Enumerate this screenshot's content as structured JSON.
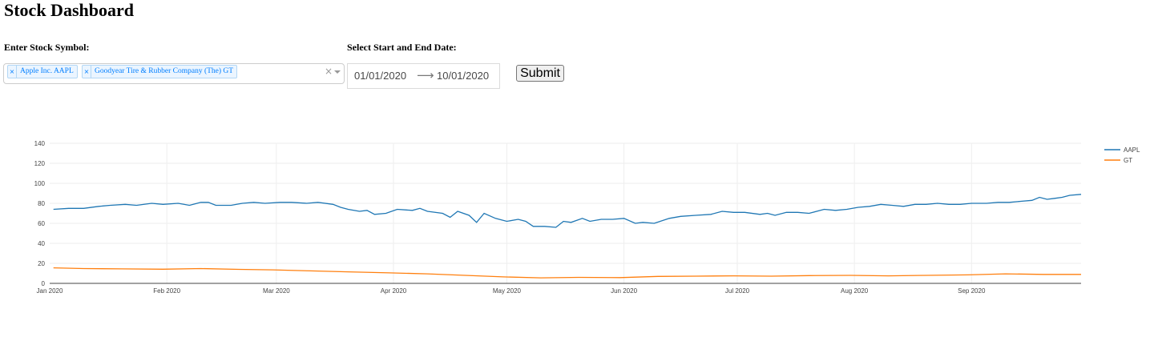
{
  "page": {
    "title": "Stock Dashboard"
  },
  "form": {
    "symbol_label": "Enter Stock Symbol:",
    "date_label": "Select Start and End Date:",
    "selected_symbols": [
      {
        "label": "Apple Inc. AAPL",
        "remove_icon": "×"
      },
      {
        "label": "Goodyear Tire & Rubber Company (The) GT",
        "remove_icon": "×"
      }
    ],
    "clear_icon": "×",
    "start_date": "01/01/2020",
    "end_date": "10/01/2020",
    "arrow_icon": "⟶",
    "submit_label": "Submit"
  },
  "colors": {
    "aapl": "#1f77b4",
    "gt": "#ff7f0e",
    "tag_blue": "#007eff"
  },
  "chart_data": {
    "type": "line",
    "title": "",
    "xlabel": "",
    "ylabel": "",
    "x_ticks": [
      "Jan 2020",
      "Feb 2020",
      "Mar 2020",
      "Apr 2020",
      "May 2020",
      "Jun 2020",
      "Jul 2020",
      "Aug 2020",
      "Sep 2020"
    ],
    "y_ticks": [
      0,
      20,
      40,
      60,
      80,
      100,
      120,
      140
    ],
    "ylim": [
      0,
      140
    ],
    "xlim": [
      "2020-01-01",
      "2020-09-30"
    ],
    "grid": true,
    "legend_position": "top-right",
    "series": [
      {
        "name": "AAPL",
        "color": "#1f77b4",
        "points": [
          [
            "2020-01-02",
            74
          ],
          [
            "2020-01-06",
            75
          ],
          [
            "2020-01-08",
            75
          ],
          [
            "2020-01-10",
            75
          ],
          [
            "2020-01-14",
            77
          ],
          [
            "2020-01-17",
            78
          ],
          [
            "2020-01-21",
            79
          ],
          [
            "2020-01-24",
            78
          ],
          [
            "2020-01-28",
            80
          ],
          [
            "2020-01-31",
            79
          ],
          [
            "2020-02-04",
            80
          ],
          [
            "2020-02-07",
            78
          ],
          [
            "2020-02-10",
            81
          ],
          [
            "2020-02-12",
            81
          ],
          [
            "2020-02-14",
            78
          ],
          [
            "2020-02-18",
            78
          ],
          [
            "2020-02-21",
            80
          ],
          [
            "2020-02-24",
            81
          ],
          [
            "2020-02-27",
            80
          ],
          [
            "2020-03-02",
            81
          ],
          [
            "2020-03-05",
            81
          ],
          [
            "2020-03-09",
            80
          ],
          [
            "2020-03-12",
            81
          ],
          [
            "2020-03-16",
            79
          ],
          [
            "2020-03-18",
            76
          ],
          [
            "2020-03-20",
            74
          ],
          [
            "2020-03-23",
            72
          ],
          [
            "2020-03-25",
            73
          ],
          [
            "2020-03-27",
            69
          ],
          [
            "2020-03-30",
            70
          ],
          [
            "2020-04-02",
            74
          ],
          [
            "2020-04-06",
            73
          ],
          [
            "2020-04-08",
            75
          ],
          [
            "2020-04-10",
            72
          ],
          [
            "2020-04-14",
            70
          ],
          [
            "2020-04-16",
            66
          ],
          [
            "2020-04-18",
            72
          ],
          [
            "2020-04-21",
            68
          ],
          [
            "2020-04-23",
            61
          ],
          [
            "2020-04-25",
            70
          ],
          [
            "2020-04-28",
            65
          ],
          [
            "2020-05-01",
            62
          ],
          [
            "2020-05-04",
            64
          ],
          [
            "2020-05-06",
            62
          ],
          [
            "2020-05-08",
            57
          ],
          [
            "2020-05-11",
            57
          ],
          [
            "2020-05-14",
            56
          ],
          [
            "2020-05-16",
            62
          ],
          [
            "2020-05-18",
            61
          ],
          [
            "2020-05-21",
            65
          ],
          [
            "2020-05-23",
            62
          ],
          [
            "2020-05-26",
            64
          ],
          [
            "2020-05-29",
            64
          ],
          [
            "2020-06-01",
            65
          ],
          [
            "2020-06-04",
            60
          ],
          [
            "2020-06-06",
            61
          ],
          [
            "2020-06-09",
            60
          ],
          [
            "2020-06-13",
            65
          ],
          [
            "2020-06-16",
            67
          ],
          [
            "2020-06-20",
            68
          ],
          [
            "2020-06-24",
            69
          ],
          [
            "2020-06-27",
            72
          ],
          [
            "2020-06-30",
            71
          ],
          [
            "2020-07-03",
            71
          ],
          [
            "2020-07-07",
            69
          ],
          [
            "2020-07-09",
            70
          ],
          [
            "2020-07-11",
            68
          ],
          [
            "2020-07-14",
            71
          ],
          [
            "2020-07-17",
            71
          ],
          [
            "2020-07-20",
            70
          ],
          [
            "2020-07-24",
            74
          ],
          [
            "2020-07-27",
            73
          ],
          [
            "2020-07-30",
            74
          ],
          [
            "2020-08-02",
            76
          ],
          [
            "2020-08-05",
            77
          ],
          [
            "2020-08-08",
            79
          ],
          [
            "2020-08-11",
            78
          ],
          [
            "2020-08-14",
            77
          ],
          [
            "2020-08-17",
            79
          ],
          [
            "2020-08-20",
            79
          ],
          [
            "2020-08-23",
            80
          ],
          [
            "2020-08-26",
            79
          ],
          [
            "2020-08-29",
            79
          ],
          [
            "2020-09-01",
            80
          ],
          [
            "2020-09-05",
            80
          ],
          [
            "2020-09-08",
            81
          ],
          [
            "2020-09-11",
            81
          ],
          [
            "2020-09-14",
            82
          ],
          [
            "2020-09-17",
            83
          ],
          [
            "2020-09-19",
            86
          ],
          [
            "2020-09-21",
            84
          ],
          [
            "2020-09-23",
            85
          ],
          [
            "2020-09-25",
            86
          ],
          [
            "2020-09-27",
            88
          ],
          [
            "2020-09-30",
            89
          ]
        ]
      },
      {
        "name": "GT",
        "color": "#ff7f0e",
        "points": [
          [
            "2020-01-02",
            15.5
          ],
          [
            "2020-01-10",
            14.8
          ],
          [
            "2020-01-20",
            14.5
          ],
          [
            "2020-01-31",
            14.2
          ],
          [
            "2020-02-10",
            14.8
          ],
          [
            "2020-02-20",
            14.0
          ],
          [
            "2020-02-29",
            13.5
          ],
          [
            "2020-03-10",
            12.5
          ],
          [
            "2020-03-20",
            11.5
          ],
          [
            "2020-03-31",
            10.5
          ],
          [
            "2020-04-10",
            9.5
          ],
          [
            "2020-04-20",
            8.0
          ],
          [
            "2020-04-30",
            6.5
          ],
          [
            "2020-05-10",
            5.5
          ],
          [
            "2020-05-20",
            6.0
          ],
          [
            "2020-05-31",
            5.8
          ],
          [
            "2020-06-10",
            7.0
          ],
          [
            "2020-06-20",
            7.2
          ],
          [
            "2020-06-30",
            7.5
          ],
          [
            "2020-07-10",
            7.2
          ],
          [
            "2020-07-20",
            7.8
          ],
          [
            "2020-07-31",
            8.0
          ],
          [
            "2020-08-10",
            7.5
          ],
          [
            "2020-08-20",
            8.0
          ],
          [
            "2020-08-31",
            8.5
          ],
          [
            "2020-09-10",
            9.5
          ],
          [
            "2020-09-20",
            9.0
          ],
          [
            "2020-09-30",
            9.0
          ]
        ]
      }
    ]
  }
}
